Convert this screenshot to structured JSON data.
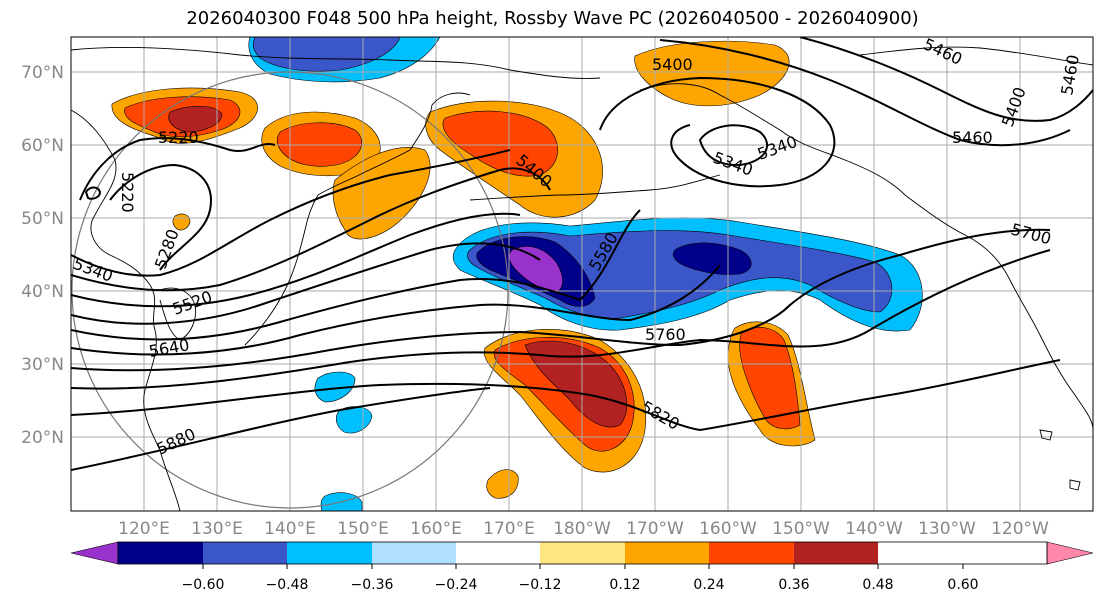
{
  "title": "2026040300 F048 500 hPa height, Rossby Wave PC (2026040500 - 2026040900)",
  "lat_labels": [
    "70°N",
    "60°N",
    "50°N",
    "40°N",
    "30°N",
    "20°N"
  ],
  "lon_labels": [
    "120°E",
    "130°E",
    "140°E",
    "150°E",
    "160°E",
    "170°E",
    "180°W",
    "170°W",
    "160°W",
    "150°W",
    "140°W",
    "130°W",
    "120°W"
  ],
  "contour_labels": [
    "5220",
    "5220",
    "5280",
    "5340",
    "5520",
    "5640",
    "5880",
    "5400",
    "5460",
    "5400",
    "5460",
    "5340",
    "5400",
    "5460",
    "5580",
    "5760",
    "5820",
    "5700",
    "5340"
  ],
  "colorbar": {
    "ticks": [
      "−0.60",
      "−0.48",
      "−0.36",
      "−0.24",
      "−0.12",
      "0.12",
      "0.24",
      "0.36",
      "0.48",
      "0.60"
    ],
    "colors": [
      "#9932CC",
      "#00008B",
      "#3A56C8",
      "#00BFFF",
      "#B0E0FF",
      "#FFFFFF",
      "#FFE680",
      "#FFA500",
      "#FF4500",
      "#B22222",
      "#FF88AA"
    ]
  }
}
